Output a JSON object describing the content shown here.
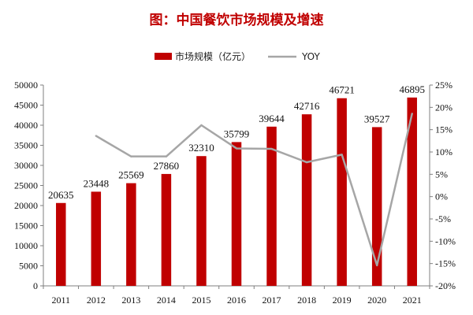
{
  "chart_data": {
    "type": "bar+line",
    "title": "图：中国餐饮市场规模及增速",
    "categories": [
      "2011",
      "2012",
      "2013",
      "2014",
      "2015",
      "2016",
      "2017",
      "2018",
      "2019",
      "2020",
      "2021"
    ],
    "series": [
      {
        "name": "市场规模（亿元）",
        "type": "bar",
        "axis": "left",
        "values": [
          20635,
          23448,
          25569,
          27860,
          32310,
          35799,
          39644,
          42716,
          46721,
          39527,
          46895
        ],
        "color": "#c00000"
      },
      {
        "name": "YOY",
        "type": "line",
        "axis": "right",
        "values": [
          null,
          13.6,
          9.0,
          9.0,
          16.0,
          10.8,
          10.7,
          7.7,
          9.4,
          -15.4,
          18.6
        ],
        "color": "#a6a6a6"
      }
    ],
    "left_axis": {
      "min": 0,
      "max": 50000,
      "ticks": [
        "0",
        "5000",
        "10000",
        "15000",
        "20000",
        "25000",
        "30000",
        "35000",
        "40000",
        "45000",
        "50000"
      ]
    },
    "right_axis": {
      "min": -20,
      "max": 25,
      "ticks": [
        "-20%",
        "-15%",
        "-10%",
        "-5%",
        "0%",
        "5%",
        "10%",
        "15%",
        "20%",
        "25%"
      ]
    },
    "legend_position": "top-center",
    "grid": false
  }
}
